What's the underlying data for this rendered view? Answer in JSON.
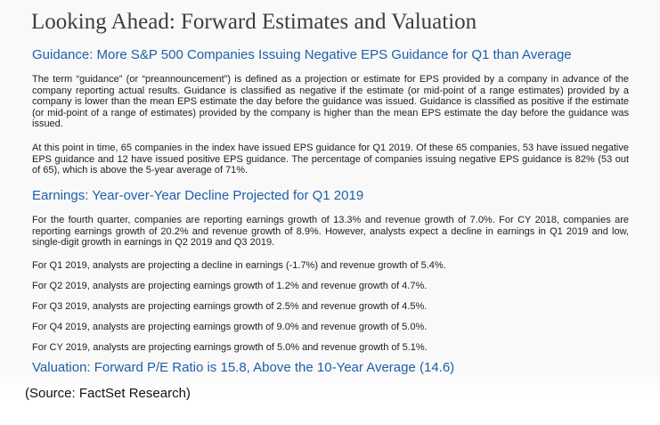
{
  "title": "Looking Ahead: Forward Estimates and Valuation",
  "guidance": {
    "heading": "Guidance: More S&P 500 Companies Issuing Negative EPS Guidance for Q1 than Average",
    "paragraph1": "The term “guidance” (or “preannouncement”) is defined as a projection or estimate for EPS provided by a company in advance of the company reporting actual results. Guidance is classified as negative if the estimate (or mid-point of a range estimates) provided by a company is lower than the mean EPS estimate the day before the guidance was issued. Guidance is classified as positive if the estimate (or mid-point of a range of estimates) provided by the company is higher than the mean EPS estimate the day before the guidance was issued.",
    "paragraph2": "At this point in time, 65 companies in the index have issued EPS guidance for Q1 2019. Of these 65 companies, 53 have issued negative EPS guidance and 12 have issued positive EPS guidance. The percentage of companies issuing negative EPS guidance is 82% (53 out of 65), which is above the 5-year average of 71%."
  },
  "earnings": {
    "heading": "Earnings: Year-over-Year Decline Projected for Q1 2019",
    "paragraph": "For the fourth quarter, companies are reporting earnings growth of 13.3% and revenue growth of 7.0%. For CY 2018, companies are reporting earnings growth of 20.2% and revenue growth of 8.9%. However, analysts expect a decline in earnings in Q1 2019 and low, single-digit growth in earnings in Q2 2019 and Q3 2019.",
    "projections": [
      "For Q1 2019, analysts are projecting a decline in earnings (-1.7%) and revenue growth of 5.4%.",
      "For Q2 2019, analysts are projecting earnings growth of 1.2% and revenue growth of 4.7%.",
      "For Q3 2019, analysts are projecting earnings growth of 2.5% and revenue growth of 4.5%.",
      "For Q4 2019, analysts are projecting earnings growth of 9.0% and revenue growth of 5.0%.",
      "For CY 2019, analysts are projecting earnings growth of 5.0% and revenue growth of 5.1%."
    ]
  },
  "valuation": {
    "heading": "Valuation: Forward P/E Ratio is 15.8, Above the 10-Year Average (14.6)"
  },
  "source": "(Source: FactSet Research)"
}
